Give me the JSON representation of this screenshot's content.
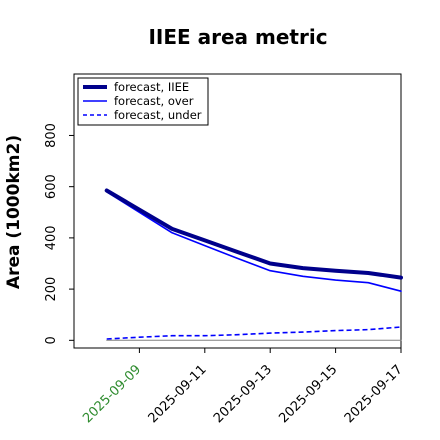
{
  "chart_data": {
    "type": "line",
    "title": "IIEE area metric",
    "xlabel": "",
    "ylabel": "Area (1000km2)",
    "x": [
      "2025-09-08",
      "2025-09-09",
      "2025-09-10",
      "2025-09-11",
      "2025-09-12",
      "2025-09-13",
      "2025-09-14",
      "2025-09-15",
      "2025-09-16",
      "2025-09-17"
    ],
    "xticks": [
      "2025-09-09",
      "2025-09-11",
      "2025-09-13",
      "2025-09-15",
      "2025-09-17"
    ],
    "xtick_colors": [
      "#2e8b2e",
      "#000000",
      "#000000",
      "#000000",
      "#000000"
    ],
    "xlim": [
      "2025-09-07",
      "2025-09-17"
    ],
    "yticks": [
      0,
      200,
      400,
      600,
      800
    ],
    "ylim": [
      -30,
      1040
    ],
    "grid": false,
    "legend_position": "top-left",
    "series": [
      {
        "name": "forecast, IIEE",
        "color": "#00008b",
        "style": "solid",
        "width": 4,
        "values": [
          585,
          510,
          435,
          390,
          345,
          300,
          282,
          272,
          263,
          245
        ]
      },
      {
        "name": "forecast, over",
        "color": "#0000ff",
        "style": "solid",
        "width": 1.6,
        "values": [
          580,
          500,
          420,
          370,
          320,
          272,
          250,
          235,
          225,
          192
        ]
      },
      {
        "name": "forecast, under",
        "color": "#0000ff",
        "style": "dashed",
        "width": 1.6,
        "values": [
          5,
          12,
          18,
          18,
          22,
          28,
          32,
          38,
          42,
          52
        ]
      },
      {
        "name": "",
        "color": "#808080",
        "style": "solid",
        "width": 1,
        "values": [
          0,
          0,
          0,
          0,
          0,
          0,
          0,
          0,
          0,
          0
        ]
      }
    ]
  }
}
